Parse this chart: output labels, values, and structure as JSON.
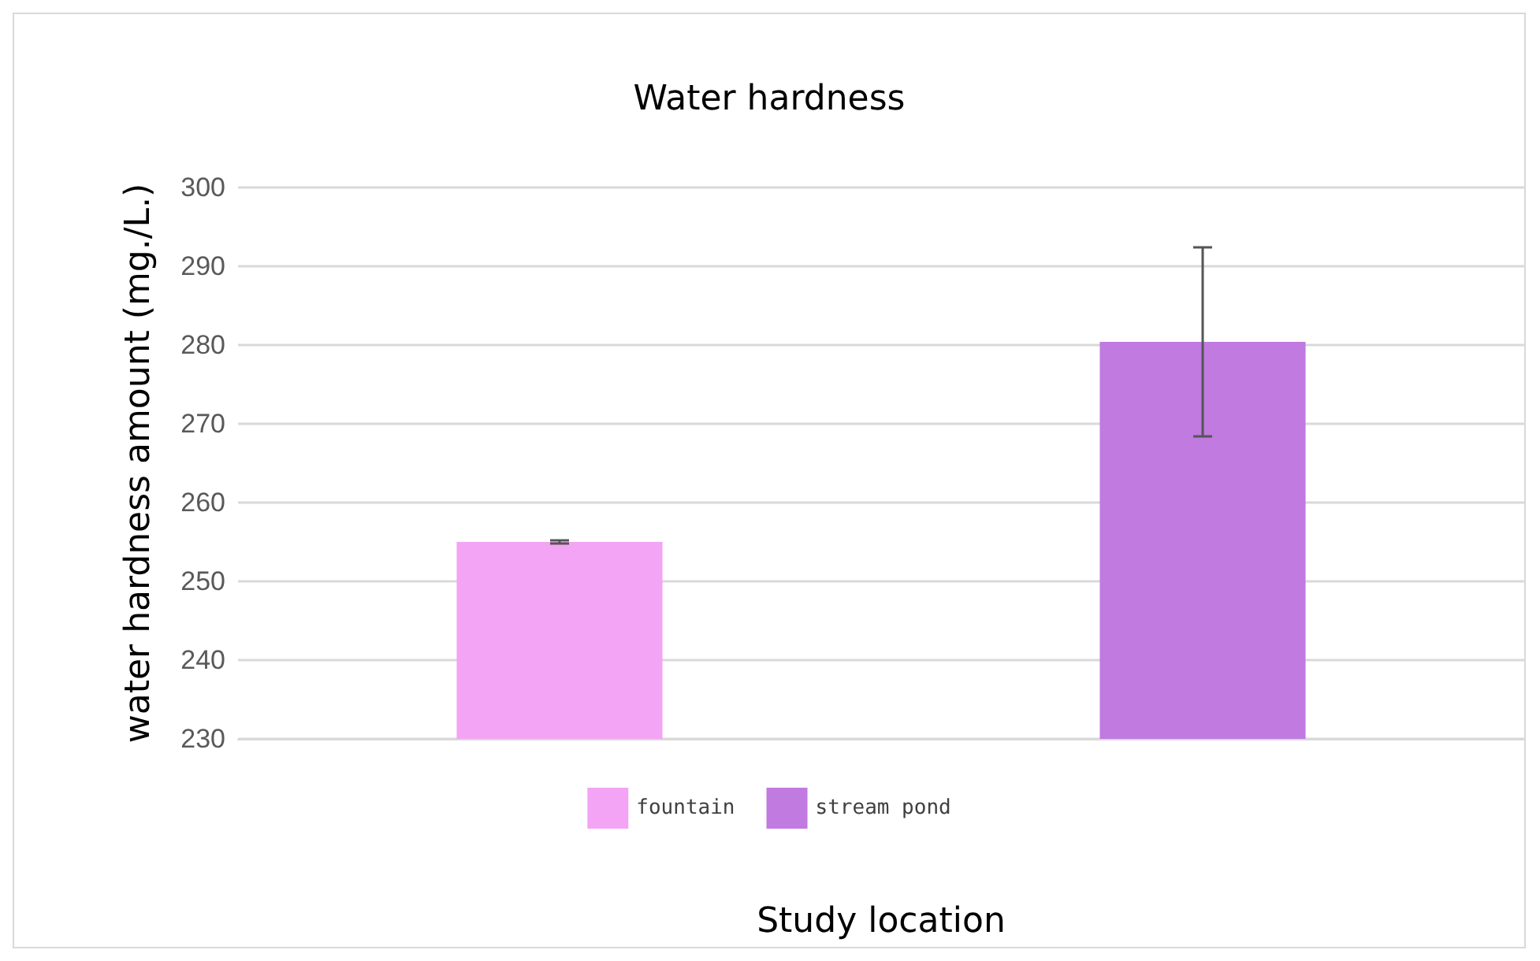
{
  "chart_data": {
    "type": "bar",
    "title": "Water hardness",
    "xlabel": "Study location",
    "ylabel": "water hardness amount (mg./L.)",
    "categories": [
      null,
      null
    ],
    "series": [
      {
        "name": "fountain",
        "color": "#f4a4f4",
        "values": [
          255,
          null
        ],
        "errors": [
          0.2,
          null
        ]
      },
      {
        "name": "stream pond",
        "color": "#c07ae0",
        "values": [
          null,
          280.4
        ],
        "errors": [
          null,
          12
        ]
      }
    ],
    "ylim": [
      230,
      300
    ],
    "yticks": [
      230,
      240,
      250,
      260,
      270,
      280,
      290,
      300
    ],
    "grid": "y",
    "legend": "bottom"
  }
}
